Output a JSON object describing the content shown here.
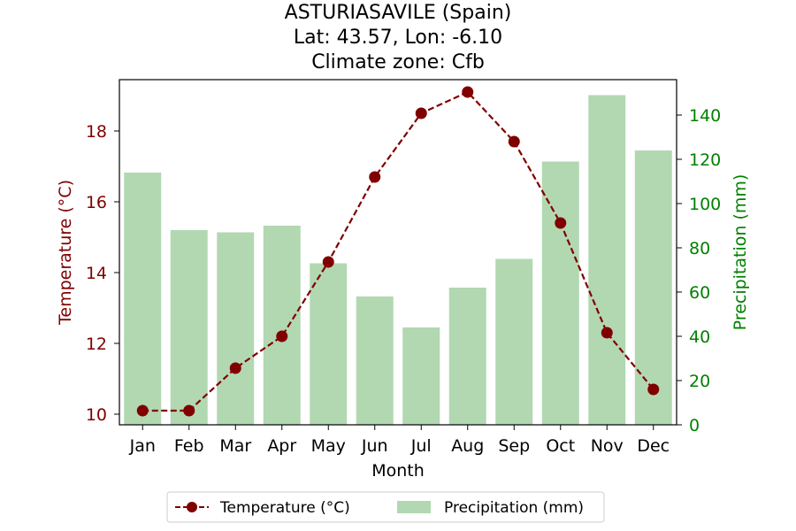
{
  "chart_data": {
    "type": "bar",
    "title_lines": [
      "ASTURIASAVILE (Spain)",
      "Lat: 43.57, Lon: -6.10",
      "Climate zone: Cfb"
    ],
    "xlabel": "Month",
    "ylabel_left": "Temperature (°C)",
    "ylabel_right": "Precipitation (mm)",
    "categories": [
      "Jan",
      "Feb",
      "Mar",
      "Apr",
      "May",
      "Jun",
      "Jul",
      "Aug",
      "Sep",
      "Oct",
      "Nov",
      "Dec"
    ],
    "series": [
      {
        "name": "Temperature (°C)",
        "type": "line",
        "axis": "left",
        "color": "#800000",
        "values": [
          10.1,
          10.1,
          11.3,
          12.2,
          14.3,
          16.7,
          18.5,
          19.1,
          17.7,
          15.4,
          12.3,
          10.7
        ]
      },
      {
        "name": "Precipitation (mm)",
        "type": "bar",
        "axis": "right",
        "color": "#b2d8b2",
        "values": [
          114,
          88,
          87,
          90,
          73,
          58,
          44,
          62,
          75,
          119,
          149,
          124
        ]
      }
    ],
    "ylim_left": [
      9.7,
      19.45
    ],
    "ylim_right": [
      0,
      156
    ],
    "yticks_left": [
      10,
      12,
      14,
      16,
      18
    ],
    "yticks_right": [
      0,
      20,
      40,
      60,
      80,
      100,
      120,
      140
    ],
    "left_axis_color": "#800000",
    "right_axis_color": "#008000",
    "legend_position": "bottom-center",
    "grid": false
  }
}
